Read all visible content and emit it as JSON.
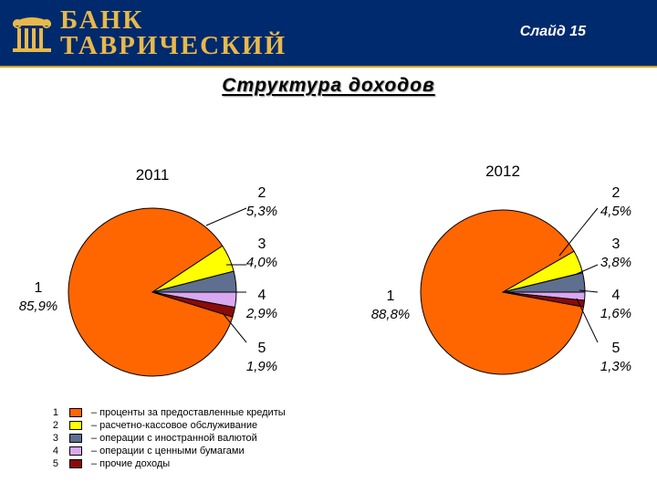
{
  "header": {
    "bank_name_line1": "БАНК",
    "bank_name_line2": "ТАВРИЧЕСКИЙ",
    "slide_label": "Слайд 15",
    "background_color": "#002a6e",
    "accent_color": "#e8b94a"
  },
  "title": "Структура доходов",
  "chart_data": [
    {
      "type": "pie",
      "title": "2011",
      "categories": [
        "1",
        "2",
        "3",
        "4",
        "5"
      ],
      "values": [
        85.9,
        5.3,
        4.0,
        2.9,
        1.9
      ],
      "labels": [
        "85,9%",
        "5,3%",
        "4,0%",
        "2,9%",
        "1,9%"
      ],
      "colors": [
        "#ff6600",
        "#ffff00",
        "#5f6f8f",
        "#d8a8f0",
        "#8b0a0a"
      ]
    },
    {
      "type": "pie",
      "title": "2012",
      "categories": [
        "1",
        "2",
        "3",
        "4",
        "5"
      ],
      "values": [
        88.8,
        4.5,
        3.8,
        1.6,
        1.3
      ],
      "labels": [
        "88,8%",
        "4,5%",
        "3,8%",
        "1,6%",
        "1,3%"
      ],
      "colors": [
        "#ff6600",
        "#ffff00",
        "#5f6f8f",
        "#d8a8f0",
        "#8b0a0a"
      ]
    }
  ],
  "legend": [
    {
      "num": "1",
      "text": "– проценты за предоставленные кредиты",
      "color": "#ff6600"
    },
    {
      "num": "2",
      "text": "– расчетно-кассовое обслуживание",
      "color": "#ffff00"
    },
    {
      "num": "3",
      "text": "– операции с иностранной валютой",
      "color": "#5f6f8f"
    },
    {
      "num": "4",
      "text": "– операции с ценными бумагами",
      "color": "#d8a8f0"
    },
    {
      "num": "5",
      "text": "– прочие доходы",
      "color": "#8b0a0a"
    }
  ]
}
